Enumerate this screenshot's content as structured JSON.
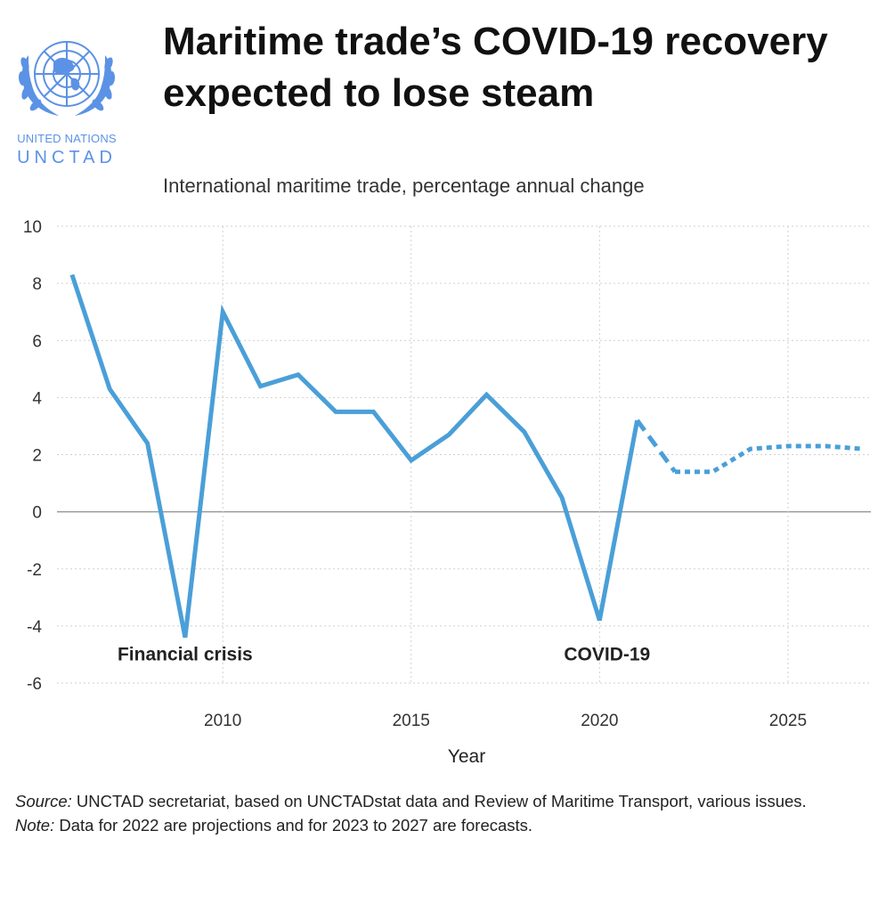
{
  "logo": {
    "icon": "un-emblem-icon",
    "line1": "UNITED NATIONS",
    "line2": "UNCTAD",
    "color": "#5b92e5"
  },
  "header": {
    "title": "Maritime trade’s COVID-19 recovery expected to lose steam",
    "subtitle": "International maritime trade, percentage annual change"
  },
  "chart_data": {
    "type": "line",
    "title": "Maritime trade’s COVID-19 recovery expected to lose steam",
    "subtitle": "International maritime trade, percentage annual change",
    "xlabel": "Year",
    "ylabel": "",
    "xlim": [
      2005.6,
      2027.2
    ],
    "ylim": [
      -6,
      10
    ],
    "yticks": [
      "10",
      "8",
      "6",
      "4",
      "2",
      "0",
      "-2",
      "-4",
      "-6"
    ],
    "xticks": [
      "2010",
      "2015",
      "2020",
      "2025"
    ],
    "grid": true,
    "legend": "none",
    "color": "#4a9fd8",
    "series": [
      {
        "style": "solid",
        "points": [
          [
            2006,
            8.3
          ],
          [
            2007,
            4.3
          ],
          [
            2008,
            2.4
          ],
          [
            2009,
            -4.4
          ],
          [
            2010,
            7.0
          ],
          [
            2011,
            4.4
          ],
          [
            2012,
            4.8
          ],
          [
            2013,
            3.5
          ],
          [
            2014,
            3.5
          ],
          [
            2015,
            1.8
          ],
          [
            2016,
            2.7
          ],
          [
            2017,
            4.1
          ],
          [
            2018,
            2.8
          ],
          [
            2019,
            0.5
          ],
          [
            2020,
            -3.8
          ],
          [
            2021,
            3.2
          ]
        ]
      },
      {
        "style": "dashed",
        "points": [
          [
            2021,
            3.2
          ],
          [
            2022,
            1.4
          ]
        ]
      },
      {
        "style": "dotted",
        "points": [
          [
            2022,
            1.4
          ],
          [
            2023,
            1.4
          ],
          [
            2024,
            2.2
          ],
          [
            2025,
            2.3
          ],
          [
            2026,
            2.3
          ],
          [
            2027,
            2.2
          ]
        ]
      }
    ],
    "annotations": [
      {
        "text": "Financial crisis",
        "x": 2009,
        "y": -5.2
      },
      {
        "text": "COVID-19",
        "x": 2020.2,
        "y": -5.2
      }
    ]
  },
  "notes": {
    "source_label": "Source:",
    "source_text": " UNCTAD secretariat, based on UNCTADstat data and Review of Maritime Transport, various issues.",
    "note_label": "Note:",
    "note_text": " Data for 2022 are projections and for 2023 to 2027 are forecasts."
  }
}
